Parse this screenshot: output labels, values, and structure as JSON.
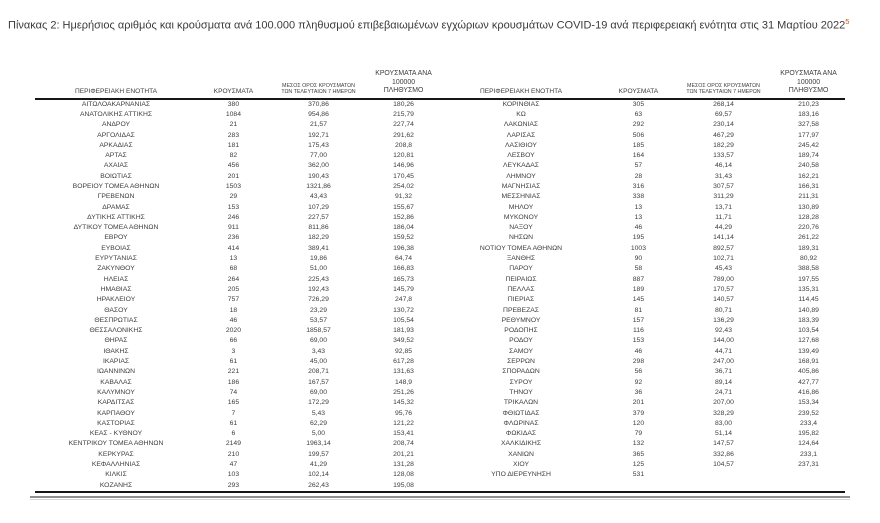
{
  "caption": {
    "text": "Πίνακας 2:  Ημερήσιος αριθμός και κρούσματα ανά 100.000 πληθυσμού επιβεβαιωμένων εγχώριων κρουσμάτων COVID-19 ανά περιφερειακή ενότητα στις 31 Μαρτίου 2022",
    "footnote_mark": "5"
  },
  "colors": {
    "text": "#3d3d3d",
    "footnote_accent": "#c55a11",
    "table_border": "#161616",
    "footer_rule": "#8f8f8f"
  },
  "table": {
    "headers": {
      "region": "ΠΕΡΙΦΕΡΕΙΑΚΗ ΕΝΟΤΗΤΑ",
      "cases": "ΚΡΟΥΣΜΑΤΑ",
      "avg7_line1": "ΜΕΣΟΣ ΟΡΟΣ ΚΡΟΥΣΜΑΤΩΝ",
      "avg7_line2": "ΤΩΝ ΤΕΛΕΥΤΑΙΩΝ 7 ΗΜΕΡΩΝ",
      "per100k_line1": "ΚΡΟΥΣΜΑΤΑ ΑΝΑ 100000",
      "per100k_line2": "ΠΛΗΘΥΣΜΟ"
    },
    "left_rows": [
      [
        "ΑΙΤΩΛΟΑΚΑΡΝΑΝΙΑΣ",
        "380",
        "370,86",
        "180,26"
      ],
      [
        "ΑΝΑΤΟΛΙΚΗΣ ΑΤΤΙΚΗΣ",
        "1084",
        "954,86",
        "215,79"
      ],
      [
        "ΑΝΔΡΟΥ",
        "21",
        "21,57",
        "227,74"
      ],
      [
        "ΑΡΓΟΛΙΔΑΣ",
        "283",
        "192,71",
        "291,62"
      ],
      [
        "ΑΡΚΑΔΙΑΣ",
        "181",
        "175,43",
        "208,8"
      ],
      [
        "ΑΡΤΑΣ",
        "82",
        "77,00",
        "120,81"
      ],
      [
        "ΑΧΑΪΑΣ",
        "456",
        "362,00",
        "146,96"
      ],
      [
        "ΒΟΙΩΤΙΑΣ",
        "201",
        "190,43",
        "170,45"
      ],
      [
        "ΒΟΡΕΙΟΥ ΤΟΜΕΑ ΑΘΗΝΩΝ",
        "1503",
        "1321,86",
        "254,02"
      ],
      [
        "ΓΡΕΒΕΝΩΝ",
        "29",
        "43,43",
        "91,32"
      ],
      [
        "ΔΡΑΜΑΣ",
        "153",
        "107,29",
        "155,67"
      ],
      [
        "ΔΥΤΙΚΗΣ ΑΤΤΙΚΗΣ",
        "246",
        "227,57",
        "152,86"
      ],
      [
        "ΔΥΤΙΚΟΥ ΤΟΜΕΑ ΑΘΗΝΩΝ",
        "911",
        "811,86",
        "186,04"
      ],
      [
        "ΕΒΡΟΥ",
        "236",
        "182,29",
        "159,52"
      ],
      [
        "ΕΥΒΟΙΑΣ",
        "414",
        "389,41",
        "196,38"
      ],
      [
        "ΕΥΡΥΤΑΝΙΑΣ",
        "13",
        "19,86",
        "64,74"
      ],
      [
        "ΖΑΚΥΝΘΟΥ",
        "68",
        "51,00",
        "166,83"
      ],
      [
        "ΗΛΕΙΑΣ",
        "264",
        "225,43",
        "165,73"
      ],
      [
        "ΗΜΑΘΙΑΣ",
        "205",
        "192,43",
        "145,79"
      ],
      [
        "ΗΡΑΚΛΕΙΟΥ",
        "757",
        "726,29",
        "247,8"
      ],
      [
        "ΘΑΣΟΥ",
        "18",
        "23,29",
        "130,72"
      ],
      [
        "ΘΕΣΠΡΩΤΙΑΣ",
        "46",
        "53,57",
        "105,54"
      ],
      [
        "ΘΕΣΣΑΛΟΝΙΚΗΣ",
        "2020",
        "1858,57",
        "181,93"
      ],
      [
        "ΘΗΡΑΣ",
        "66",
        "69,00",
        "349,52"
      ],
      [
        "ΙΘΑΚΗΣ",
        "3",
        "3,43",
        "92,85"
      ],
      [
        "ΙΚΑΡΙΑΣ",
        "61",
        "45,00",
        "617,28"
      ],
      [
        "ΙΩΑΝΝΙΝΩΝ",
        "221",
        "208,71",
        "131,63"
      ],
      [
        "ΚΑΒΑΛΑΣ",
        "186",
        "167,57",
        "148,9"
      ],
      [
        "ΚΑΛΥΜΝΟΥ",
        "74",
        "69,00",
        "251,26"
      ],
      [
        "ΚΑΡΔΙΤΣΑΣ",
        "165",
        "172,29",
        "145,32"
      ],
      [
        "ΚΑΡΠΑΘΟΥ",
        "7",
        "5,43",
        "95,76"
      ],
      [
        "ΚΑΣΤΟΡΙΑΣ",
        "61",
        "62,29",
        "121,22"
      ],
      [
        "ΚΕΑΣ - ΚΥΘΝΟΥ",
        "6",
        "5,00",
        "153,41"
      ],
      [
        "ΚΕΝΤΡΙΚΟΥ ΤΟΜΕΑ ΑΘΗΝΩΝ",
        "2149",
        "1963,14",
        "208,74"
      ],
      [
        "ΚΕΡΚΥΡΑΣ",
        "210",
        "199,57",
        "201,21"
      ],
      [
        "ΚΕΦΑΛΛΗΝΙΑΣ",
        "47",
        "41,29",
        "131,28"
      ],
      [
        "ΚΙΛΚΙΣ",
        "103",
        "102,14",
        "128,08"
      ],
      [
        "ΚΟΖΑΝΗΣ",
        "293",
        "262,43",
        "195,08"
      ]
    ],
    "right_rows": [
      [
        "ΚΟΡΙΝΘΙΑΣ",
        "305",
        "268,14",
        "210,23"
      ],
      [
        "ΚΩ",
        "63",
        "69,57",
        "183,16"
      ],
      [
        "ΛΑΚΩΝΙΑΣ",
        "292",
        "230,14",
        "327,58"
      ],
      [
        "ΛΑΡΙΣΑΣ",
        "506",
        "467,29",
        "177,97"
      ],
      [
        "ΛΑΣΙΘΙΟΥ",
        "185",
        "182,29",
        "245,42"
      ],
      [
        "ΛΕΣΒΟΥ",
        "164",
        "133,57",
        "189,74"
      ],
      [
        "ΛΕΥΚΑΔΑΣ",
        "57",
        "46,14",
        "240,58"
      ],
      [
        "ΛΗΜΝΟΥ",
        "28",
        "31,43",
        "162,21"
      ],
      [
        "ΜΑΓΝΗΣΙΑΣ",
        "316",
        "307,57",
        "166,31"
      ],
      [
        "ΜΕΣΣΗΝΙΑΣ",
        "338",
        "311,29",
        "211,31"
      ],
      [
        "ΜΗΛΟΥ",
        "13",
        "13,71",
        "130,89"
      ],
      [
        "ΜΥΚΟΝΟΥ",
        "13",
        "11,71",
        "128,28"
      ],
      [
        "ΝΑΞΟΥ",
        "46",
        "44,29",
        "220,76"
      ],
      [
        "ΝΗΣΩΝ",
        "195",
        "141,14",
        "261,22"
      ],
      [
        "ΝΟΤΙΟΥ ΤΟΜΕΑ ΑΘΗΝΩΝ",
        "1003",
        "892,57",
        "189,31"
      ],
      [
        "ΞΑΝΘΗΣ",
        "90",
        "102,71",
        "80,92"
      ],
      [
        "ΠΑΡΟΥ",
        "58",
        "45,43",
        "388,58"
      ],
      [
        "ΠΕΙΡΑΙΩΣ",
        "887",
        "789,00",
        "197,55"
      ],
      [
        "ΠΕΛΛΑΣ",
        "189",
        "170,57",
        "135,31"
      ],
      [
        "ΠΙΕΡΙΑΣ",
        "145",
        "140,57",
        "114,45"
      ],
      [
        "ΠΡΕΒΕΖΑΣ",
        "81",
        "80,71",
        "140,89"
      ],
      [
        "ΡΕΘΥΜΝΟΥ",
        "157",
        "136,29",
        "183,39"
      ],
      [
        "ΡΟΔΟΠΗΣ",
        "116",
        "92,43",
        "103,54"
      ],
      [
        "ΡΟΔΟΥ",
        "153",
        "144,00",
        "127,68"
      ],
      [
        "ΣΑΜΟΥ",
        "46",
        "44,71",
        "139,49"
      ],
      [
        "ΣΕΡΡΩΝ",
        "298",
        "247,00",
        "168,91"
      ],
      [
        "ΣΠΟΡΑΔΩΝ",
        "56",
        "36,71",
        "405,86"
      ],
      [
        "ΣΥΡΟΥ",
        "92",
        "89,14",
        "427,77"
      ],
      [
        "ΤΗΝΟΥ",
        "36",
        "24,71",
        "416,86"
      ],
      [
        "ΤΡΙΚΑΛΩΝ",
        "201",
        "207,00",
        "153,34"
      ],
      [
        "ΦΘΙΩΤΙΔΑΣ",
        "379",
        "328,29",
        "239,52"
      ],
      [
        "ΦΛΩΡΙΝΑΣ",
        "120",
        "83,00",
        "233,4"
      ],
      [
        "ΦΩΚΙΔΑΣ",
        "79",
        "51,14",
        "195,82"
      ],
      [
        "ΧΑΛΚΙΔΙΚΗΣ",
        "132",
        "147,57",
        "124,64"
      ],
      [
        "ΧΑΝΙΩΝ",
        "365",
        "332,86",
        "233,1"
      ],
      [
        "ΧΙΟΥ",
        "125",
        "104,57",
        "237,31"
      ],
      [
        "ΥΠΟ ΔΙΕΡΕΥΝΗΣΗ",
        "531",
        "",
        ""
      ]
    ]
  }
}
